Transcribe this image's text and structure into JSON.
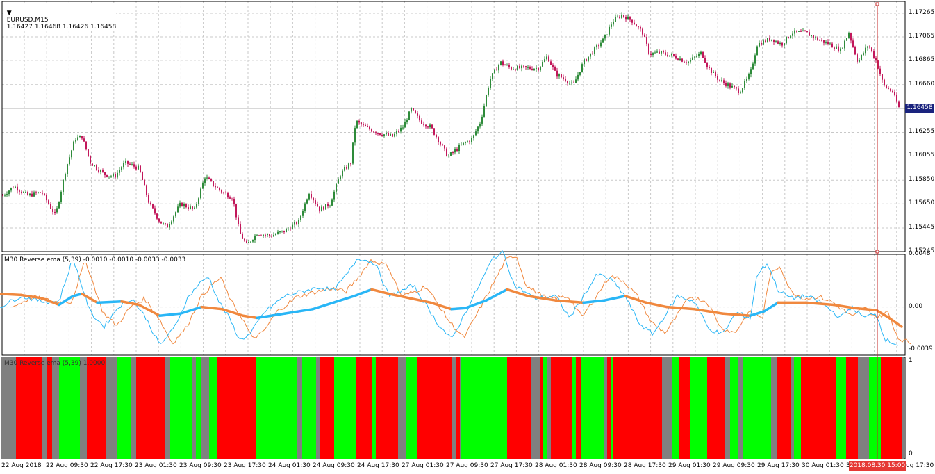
{
  "main": {
    "symbol_label": "EURUSD,M15",
    "ohlc": "1.16427 1.16468 1.16426 1.16458",
    "price_labels": [
      "1.17265",
      "1.17065",
      "1.16865",
      "1.16660",
      "1.16458",
      "1.16255",
      "1.16055",
      "1.15850",
      "1.15650",
      "1.15445",
      "1.15245"
    ],
    "current_price": "1.16458"
  },
  "ind1": {
    "title": "M30 Reverse ema (5,39) -0.0010 -0.0010 -0.0033 -0.0033",
    "axis_labels": [
      "0.0048",
      "0.00",
      "-0.0039"
    ]
  },
  "ind2": {
    "title": "M30 Reverse ema (5,39) 1.0000",
    "axis_labels": [
      "1",
      "0"
    ]
  },
  "time_axis": {
    "labels": [
      "22 Aug 2018",
      "22 Aug 09:30",
      "22 Aug 17:30",
      "23 Aug 01:30",
      "23 Aug 09:30",
      "23 Aug 17:30",
      "24 Aug 01:30",
      "24 Aug 09:30",
      "24 Aug 17:30",
      "27 Aug 01:30",
      "27 Aug 09:30",
      "27 Aug 17:30",
      "28 Aug 01:30",
      "28 Aug 09:30",
      "28 Aug 17:30",
      "29 Aug 01:30",
      "29 Aug 09:30",
      "29 Aug 17:30",
      "30 Aug 01:30",
      "3"
    ],
    "cursor_label": "2018.08.30 15:00",
    "trailing_label": "ug 17:30"
  },
  "colors": {
    "bull": "#2e8b3a",
    "bear": "#c2185b",
    "fast": "#29b6f6",
    "slow": "#f0883e",
    "red": "#ff0000",
    "green": "#00ff00",
    "gray": "#808080",
    "grid": "#c8c8c8"
  },
  "chart_data": [
    {
      "type": "line",
      "title": "EURUSD,M15",
      "ylim": [
        1.15245,
        1.17365
      ],
      "points": [
        [
          0,
          1.157
        ],
        [
          20,
          1.158
        ],
        [
          40,
          1.1572
        ],
        [
          60,
          1.1575
        ],
        [
          80,
          1.1555
        ],
        [
          95,
          1.1595
        ],
        [
          108,
          1.162
        ],
        [
          118,
          1.1622
        ],
        [
          130,
          1.16
        ],
        [
          150,
          1.159
        ],
        [
          165,
          1.1588
        ],
        [
          180,
          1.16
        ],
        [
          200,
          1.1595
        ],
        [
          215,
          1.1565
        ],
        [
          230,
          1.155
        ],
        [
          240,
          1.1545
        ],
        [
          260,
          1.1565
        ],
        [
          280,
          1.156
        ],
        [
          295,
          1.1588
        ],
        [
          305,
          1.1582
        ],
        [
          320,
          1.1575
        ],
        [
          335,
          1.157
        ],
        [
          345,
          1.154
        ],
        [
          355,
          1.153
        ],
        [
          370,
          1.154
        ],
        [
          390,
          1.1538
        ],
        [
          410,
          1.1542
        ],
        [
          430,
          1.155
        ],
        [
          445,
          1.1575
        ],
        [
          460,
          1.156
        ],
        [
          475,
          1.1565
        ],
        [
          490,
          1.159
        ],
        [
          505,
          1.16
        ],
        [
          512,
          1.1635
        ],
        [
          525,
          1.163
        ],
        [
          545,
          1.1625
        ],
        [
          565,
          1.1622
        ],
        [
          580,
          1.163
        ],
        [
          592,
          1.1645
        ],
        [
          605,
          1.1635
        ],
        [
          620,
          1.163
        ],
        [
          635,
          1.1615
        ],
        [
          645,
          1.1605
        ],
        [
          665,
          1.1615
        ],
        [
          680,
          1.162
        ],
        [
          692,
          1.1635
        ],
        [
          705,
          1.167
        ],
        [
          720,
          1.1685
        ],
        [
          735,
          1.168
        ],
        [
          755,
          1.168
        ],
        [
          775,
          1.168
        ],
        [
          788,
          1.169
        ],
        [
          800,
          1.1675
        ],
        [
          815,
          1.167
        ],
        [
          825,
          1.1665
        ],
        [
          840,
          1.1685
        ],
        [
          855,
          1.1695
        ],
        [
          870,
          1.1705
        ],
        [
          882,
          1.172
        ],
        [
          895,
          1.1725
        ],
        [
          910,
          1.172
        ],
        [
          925,
          1.171
        ],
        [
          935,
          1.1692
        ],
        [
          950,
          1.1693
        ],
        [
          970,
          1.169
        ],
        [
          990,
          1.1685
        ],
        [
          1010,
          1.1693
        ],
        [
          1020,
          1.168
        ],
        [
          1035,
          1.167
        ],
        [
          1050,
          1.1665
        ],
        [
          1065,
          1.166
        ],
        [
          1080,
          1.1675
        ],
        [
          1090,
          1.17
        ],
        [
          1110,
          1.1705
        ],
        [
          1125,
          1.17
        ],
        [
          1140,
          1.171
        ],
        [
          1160,
          1.171
        ],
        [
          1175,
          1.1705
        ],
        [
          1195,
          1.17
        ],
        [
          1210,
          1.1695
        ],
        [
          1222,
          1.171
        ],
        [
          1235,
          1.1685
        ],
        [
          1250,
          1.17
        ],
        [
          1262,
          1.1685
        ],
        [
          1272,
          1.1665
        ],
        [
          1285,
          1.166
        ],
        [
          1295,
          1.1645
        ]
      ]
    },
    {
      "type": "line",
      "title": "M30 Reverse ema (5,39) -0.0010 -0.0010 -0.0033 -0.0033",
      "ylim": [
        -0.0044,
        0.0048
      ],
      "series": [
        {
          "values": [
            [
              0,
              0.0
            ],
            [
              30,
              0.001
            ],
            [
              60,
              0.0005
            ],
            [
              85,
              0.0005
            ],
            [
              95,
              0.0025
            ],
            [
              105,
              0.0045
            ],
            [
              115,
              0.0025
            ],
            [
              130,
              -0.0005
            ],
            [
              150,
              -0.0018
            ],
            [
              170,
              0.0
            ],
            [
              190,
              0.0008
            ],
            [
              210,
              -0.001
            ],
            [
              230,
              -0.0035
            ],
            [
              250,
              -0.002
            ],
            [
              270,
              0.0008
            ],
            [
              285,
              0.002
            ],
            [
              300,
              0.0028
            ],
            [
              315,
              0.0005
            ],
            [
              330,
              -0.001
            ],
            [
              345,
              -0.003
            ],
            [
              360,
              -0.0025
            ],
            [
              380,
              -0.0005
            ],
            [
              410,
              0.001
            ],
            [
              440,
              0.0015
            ],
            [
              460,
              0.0018
            ],
            [
              480,
              0.0015
            ],
            [
              500,
              0.003
            ],
            [
              515,
              0.0045
            ],
            [
              540,
              0.004
            ],
            [
              560,
              0.001
            ],
            [
              580,
              0.0015
            ],
            [
              595,
              0.002
            ],
            [
              610,
              0.0005
            ],
            [
              630,
              -0.0015
            ],
            [
              650,
              -0.003
            ],
            [
              670,
              -0.0005
            ],
            [
              690,
              0.002
            ],
            [
              710,
              0.0045
            ],
            [
              725,
              0.005
            ],
            [
              740,
              0.002
            ],
            [
              770,
              0.0008
            ],
            [
              800,
              0.001
            ],
            [
              820,
              -0.001
            ],
            [
              840,
              0.001
            ],
            [
              860,
              0.003
            ],
            [
              880,
              0.0025
            ],
            [
              900,
              0.001
            ],
            [
              920,
              -0.0015
            ],
            [
              940,
              -0.0025
            ],
            [
              960,
              -0.0005
            ],
            [
              975,
              0.001
            ],
            [
              1000,
              0.0005
            ],
            [
              1020,
              -0.002
            ],
            [
              1040,
              -0.0025
            ],
            [
              1060,
              -0.0005
            ],
            [
              1080,
              -0.001
            ],
            [
              1090,
              0.003
            ],
            [
              1105,
              0.004
            ],
            [
              1120,
              0.0015
            ],
            [
              1140,
              0.0008
            ],
            [
              1160,
              0.001
            ],
            [
              1180,
              0.0005
            ],
            [
              1210,
              -0.001
            ],
            [
              1225,
              0.0
            ],
            [
              1245,
              -0.001
            ],
            [
              1260,
              -0.0005
            ],
            [
              1275,
              -0.003
            ],
            [
              1295,
              -0.0035
            ]
          ]
        },
        {
          "values": [
            [
              0,
              0.0012
            ],
            [
              30,
              0.0011
            ],
            [
              60,
              0.0008
            ],
            [
              85,
              0.0002
            ],
            [
              105,
              0.001
            ],
            [
              118,
              0.0012
            ],
            [
              140,
              0.0004
            ],
            [
              175,
              0.0005
            ],
            [
              200,
              0.0002
            ],
            [
              230,
              -0.0008
            ],
            [
              260,
              -0.0006
            ],
            [
              290,
              0.0
            ],
            [
              320,
              -0.0002
            ],
            [
              350,
              -0.0008
            ],
            [
              370,
              -0.001
            ],
            [
              410,
              -0.0006
            ],
            [
              450,
              -0.0002
            ],
            [
              480,
              0.0004
            ],
            [
              510,
              0.001
            ],
            [
              535,
              0.0016
            ],
            [
              560,
              0.0012
            ],
            [
              590,
              0.0008
            ],
            [
              620,
              0.0004
            ],
            [
              650,
              -0.0002
            ],
            [
              670,
              -0.0001
            ],
            [
              700,
              0.0006
            ],
            [
              730,
              0.0016
            ],
            [
              760,
              0.001
            ],
            [
              800,
              0.0006
            ],
            [
              840,
              0.0004
            ],
            [
              870,
              0.0006
            ],
            [
              900,
              0.001
            ],
            [
              930,
              0.0004
            ],
            [
              960,
              0.0
            ],
            [
              1000,
              -0.0002
            ],
            [
              1040,
              -0.0006
            ],
            [
              1080,
              -0.0008
            ],
            [
              1100,
              -0.0004
            ],
            [
              1120,
              0.0004
            ],
            [
              1160,
              0.0004
            ],
            [
              1200,
              0.0002
            ],
            [
              1230,
              -0.0001
            ],
            [
              1262,
              -0.0003
            ],
            [
              1280,
              -0.001
            ],
            [
              1298,
              -0.0018
            ]
          ]
        }
      ]
    },
    {
      "type": "bar",
      "title": "M30 Reverse ema (5,39) 1.0000",
      "ylim": [
        0,
        1
      ],
      "segments": [
        [
          0,
          20,
          "gray"
        ],
        [
          20,
          57,
          "red"
        ],
        [
          57,
          65,
          "gray"
        ],
        [
          65,
          72,
          "red"
        ],
        [
          72,
          82,
          "gray"
        ],
        [
          82,
          112,
          "green"
        ],
        [
          112,
          122,
          "gray"
        ],
        [
          122,
          150,
          "red"
        ],
        [
          150,
          165,
          "gray"
        ],
        [
          165,
          186,
          "green"
        ],
        [
          186,
          193,
          "gray"
        ],
        [
          193,
          234,
          "red"
        ],
        [
          234,
          242,
          "gray"
        ],
        [
          242,
          273,
          "green"
        ],
        [
          273,
          279,
          "gray"
        ],
        [
          279,
          286,
          "green"
        ],
        [
          286,
          298,
          "gray"
        ],
        [
          298,
          309,
          "green"
        ],
        [
          309,
          365,
          "red"
        ],
        [
          365,
          425,
          "green"
        ],
        [
          425,
          432,
          "gray"
        ],
        [
          432,
          452,
          "green"
        ],
        [
          452,
          458,
          "gray"
        ],
        [
          458,
          478,
          "red"
        ],
        [
          478,
          510,
          "green"
        ],
        [
          510,
          532,
          "red"
        ],
        [
          532,
          538,
          "green"
        ],
        [
          538,
          570,
          "red"
        ],
        [
          570,
          582,
          "gray"
        ],
        [
          582,
          598,
          "green"
        ],
        [
          598,
          647,
          "red"
        ],
        [
          647,
          653,
          "gray"
        ],
        [
          653,
          659,
          "red"
        ],
        [
          659,
          661,
          "gray"
        ],
        [
          661,
          727,
          "green"
        ],
        [
          727,
          762,
          "red"
        ],
        [
          762,
          775,
          "gray"
        ],
        [
          775,
          779,
          "red"
        ],
        [
          779,
          785,
          "green"
        ],
        [
          785,
          790,
          "gray"
        ],
        [
          790,
          821,
          "red"
        ],
        [
          821,
          826,
          "green"
        ],
        [
          826,
          833,
          "red"
        ],
        [
          833,
          867,
          "green"
        ],
        [
          867,
          871,
          "gray"
        ],
        [
          871,
          876,
          "red"
        ],
        [
          876,
          880,
          "green"
        ],
        [
          880,
          893,
          "red"
        ],
        [
          893,
          950,
          "red"
        ],
        [
          950,
          964,
          "gray"
        ],
        [
          964,
          974,
          "green"
        ],
        [
          974,
          990,
          "red"
        ],
        [
          990,
          1015,
          "green"
        ],
        [
          1015,
          1040,
          "red"
        ],
        [
          1040,
          1048,
          "gray"
        ],
        [
          1048,
          1060,
          "green"
        ],
        [
          1060,
          1066,
          "gray"
        ],
        [
          1066,
          1075,
          "green"
        ],
        [
          1075,
          1107,
          "green"
        ],
        [
          1107,
          1115,
          "gray"
        ],
        [
          1115,
          1135,
          "red"
        ],
        [
          1135,
          1140,
          "gray"
        ],
        [
          1140,
          1150,
          "green"
        ],
        [
          1150,
          1200,
          "red"
        ],
        [
          1200,
          1215,
          "green"
        ],
        [
          1215,
          1232,
          "red"
        ],
        [
          1232,
          1248,
          "gray"
        ],
        [
          1248,
          1265,
          "green"
        ],
        [
          1265,
          1295,
          "red"
        ],
        [
          1295,
          1298,
          "gray"
        ]
      ]
    }
  ]
}
